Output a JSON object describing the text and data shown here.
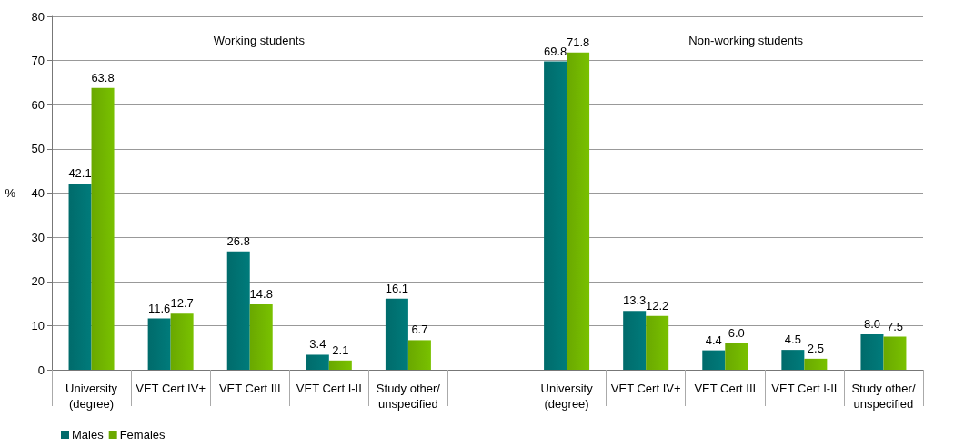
{
  "chart_data": {
    "type": "bar",
    "categories": [
      "University\n(degree)",
      "VET Cert IV+",
      "VET Cert III",
      "VET Cert I-II",
      "Study other/\nunspecified",
      null,
      "University\n(degree)",
      "VET Cert IV+",
      "VET Cert III",
      "VET Cert I-II",
      "Study other/\nunspecified"
    ],
    "series": [
      {
        "name": "Males",
        "color": "#006b6b",
        "values": [
          42.1,
          11.6,
          26.8,
          3.4,
          16.1,
          null,
          69.8,
          13.3,
          4.4,
          4.5,
          8.0
        ],
        "value_labels": [
          "42.1",
          "11.6",
          "26.8",
          "3.4",
          "16.1",
          null,
          "69.8",
          "13.3",
          "4.4",
          "4.5",
          "8.0"
        ]
      },
      {
        "name": "Females",
        "color": "#6aa800",
        "values": [
          63.8,
          12.7,
          14.8,
          2.1,
          6.7,
          null,
          71.8,
          12.2,
          6.0,
          2.5,
          7.5
        ],
        "value_labels": [
          "63.8",
          "12.7",
          "14.8",
          "2.1",
          "6.7",
          null,
          "71.8",
          "12.2",
          "6.0",
          "2.5",
          "7.5"
        ]
      }
    ],
    "ylabel": "%",
    "annotations": [
      "Working students",
      "Non-working students"
    ],
    "ylim": [
      0,
      80
    ],
    "yticks": [
      0,
      10,
      20,
      30,
      40,
      50,
      60,
      70,
      80
    ],
    "grid": "y",
    "legend": "bottom left"
  }
}
